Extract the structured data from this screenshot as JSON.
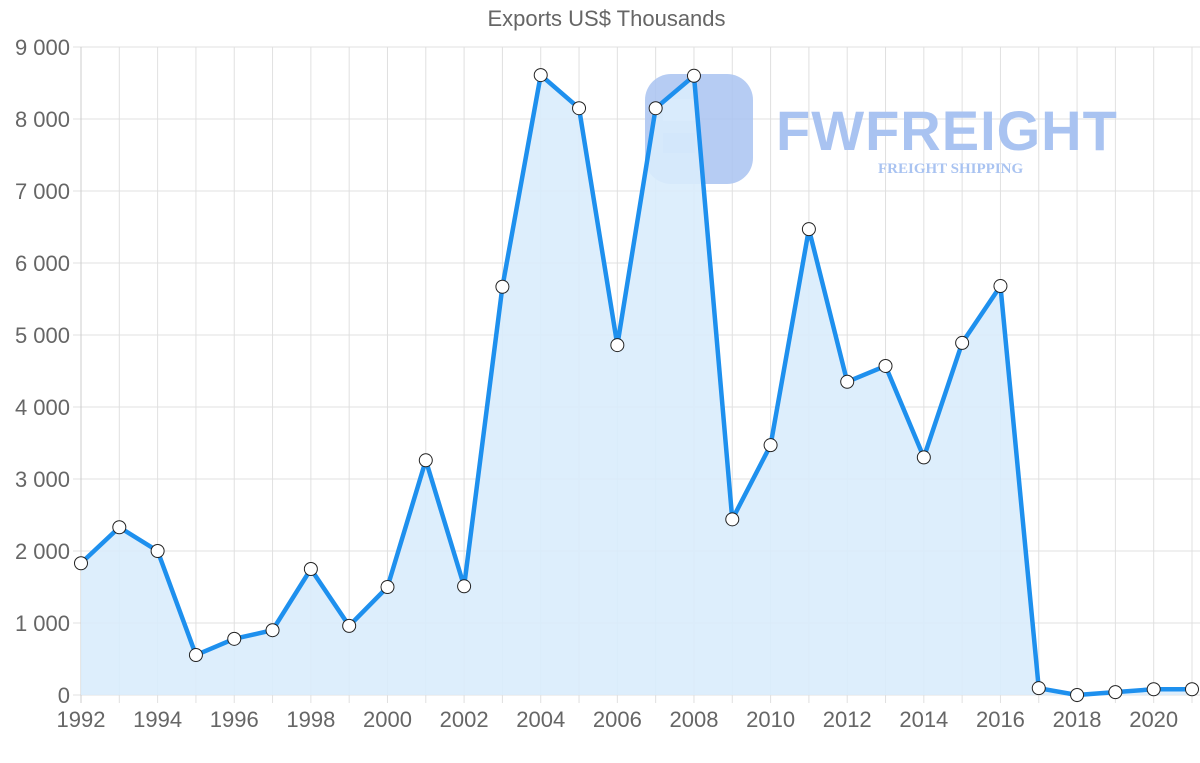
{
  "chart_data": {
    "type": "area",
    "title": "Exports US$ Thousands",
    "xlabel": "",
    "ylabel": "",
    "x": [
      1992,
      1993,
      1994,
      1995,
      1996,
      1997,
      1998,
      1999,
      2000,
      2001,
      2002,
      2003,
      2004,
      2005,
      2006,
      2007,
      2008,
      2009,
      2010,
      2011,
      2012,
      2013,
      2014,
      2015,
      2016,
      2017,
      2018,
      2019,
      2020,
      2021
    ],
    "series": [
      {
        "name": "Exports US$ Thousands",
        "values": [
          1830,
          2330,
          2000,
          555,
          780,
          900,
          1750,
          960,
          1500,
          3260,
          1510,
          5670,
          8610,
          8150,
          4860,
          8150,
          8600,
          2440,
          3470,
          6470,
          4350,
          4570,
          3300,
          4890,
          5680,
          95,
          0,
          40,
          80,
          80
        ]
      }
    ],
    "ylim": [
      0,
      9000
    ],
    "y_ticks": [
      "0",
      "1 000",
      "2 000",
      "3 000",
      "4 000",
      "5 000",
      "6 000",
      "7 000",
      "8 000",
      "9 000"
    ],
    "x_ticks": [
      "1992",
      "1994",
      "1996",
      "1998",
      "2000",
      "2002",
      "2004",
      "2006",
      "2008",
      "2010",
      "2012",
      "2014",
      "2016",
      "2018",
      "2020"
    ],
    "grid": true,
    "legend": "none",
    "colors": {
      "line": "#1e90ee",
      "fill": "#d9ecfc",
      "marker_fill": "#ffffff",
      "marker_stroke": "#222222",
      "grid": "#e0e0e0"
    }
  },
  "watermark": {
    "brand": "FWFREIGHT",
    "tagline": "FREIGHT SHIPPING"
  }
}
